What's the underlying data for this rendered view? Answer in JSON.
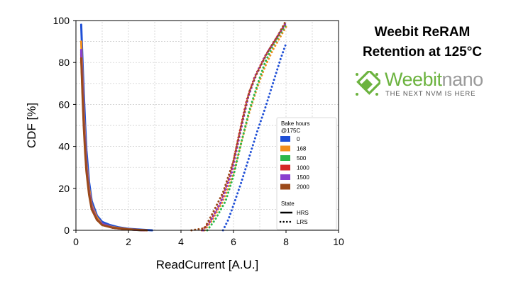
{
  "slide": {
    "title_line1": "Weebit ReRAM",
    "title_line2": "Retention at 125°C"
  },
  "logo": {
    "brand_part1": "Weebit",
    "brand_part2": "nano",
    "tagline": "THE NEXT NVM IS HERE",
    "brand_color": "#6cb33f",
    "nano_color": "#9a9a9a",
    "tagline_color": "#555555",
    "icon": "chip-icon"
  },
  "chart_data": {
    "type": "line",
    "xlabel": "ReadCurrent [A.U.]",
    "ylabel": "CDF [%]",
    "xlim": [
      0,
      10
    ],
    "ylim": [
      0,
      100
    ],
    "xticks": [
      0,
      2,
      4,
      6,
      8,
      10
    ],
    "yticks": [
      0,
      20,
      40,
      60,
      80,
      100
    ],
    "grid": true,
    "legend": {
      "position": "right",
      "title_line1": "Bake hours",
      "title_line2": "@175C",
      "state_title": "State",
      "state_entries": [
        {
          "label": "HRS",
          "style": "solid"
        },
        {
          "label": "LRS",
          "style": "dotted"
        }
      ]
    },
    "series": [
      {
        "name": "0",
        "color": "#1f4fd6",
        "hrs": [
          [
            0.2,
            98
          ],
          [
            0.25,
            80
          ],
          [
            0.3,
            65
          ],
          [
            0.35,
            50
          ],
          [
            0.4,
            38
          ],
          [
            0.5,
            23
          ],
          [
            0.6,
            14
          ],
          [
            0.8,
            7
          ],
          [
            1.0,
            4
          ],
          [
            1.3,
            2.5
          ],
          [
            1.6,
            1.5
          ],
          [
            2.0,
            0.7
          ],
          [
            2.5,
            0.3
          ],
          [
            2.9,
            0
          ]
        ],
        "lrs": [
          [
            5.6,
            0
          ],
          [
            5.8,
            5
          ],
          [
            6.0,
            12
          ],
          [
            6.3,
            23
          ],
          [
            6.6,
            35
          ],
          [
            6.9,
            47
          ],
          [
            7.2,
            58
          ],
          [
            7.5,
            70
          ],
          [
            7.8,
            82
          ],
          [
            8.0,
            89
          ]
        ]
      },
      {
        "name": "168",
        "color": "#f28e1c",
        "hrs": [
          [
            0.2,
            90
          ],
          [
            0.25,
            72
          ],
          [
            0.3,
            56
          ],
          [
            0.35,
            43
          ],
          [
            0.4,
            32
          ],
          [
            0.5,
            20
          ],
          [
            0.6,
            12
          ],
          [
            0.8,
            6
          ],
          [
            1.0,
            3
          ],
          [
            1.4,
            1.5
          ],
          [
            2.0,
            0.5
          ],
          [
            2.6,
            0
          ]
        ],
        "lrs": [
          [
            4.9,
            0
          ],
          [
            5.2,
            5
          ],
          [
            5.6,
            14
          ],
          [
            6.0,
            27
          ],
          [
            6.3,
            42
          ],
          [
            6.6,
            56
          ],
          [
            6.9,
            68
          ],
          [
            7.2,
            78
          ],
          [
            7.5,
            86
          ],
          [
            8.0,
            97
          ]
        ]
      },
      {
        "name": "500",
        "color": "#2cb84b",
        "hrs": [
          [
            0.2,
            85
          ],
          [
            0.25,
            67
          ],
          [
            0.3,
            52
          ],
          [
            0.35,
            40
          ],
          [
            0.4,
            30
          ],
          [
            0.5,
            18
          ],
          [
            0.6,
            11
          ],
          [
            0.8,
            5
          ],
          [
            1.0,
            3
          ],
          [
            1.4,
            1.3
          ],
          [
            2.0,
            0.4
          ],
          [
            2.5,
            0
          ]
        ],
        "lrs": [
          [
            5.0,
            0
          ],
          [
            5.3,
            5
          ],
          [
            5.7,
            14
          ],
          [
            6.0,
            26
          ],
          [
            6.3,
            42
          ],
          [
            6.6,
            57
          ],
          [
            6.9,
            69
          ],
          [
            7.2,
            80
          ],
          [
            7.5,
            88
          ],
          [
            8.0,
            98
          ]
        ]
      },
      {
        "name": "1000",
        "color": "#d62728",
        "hrs": [
          [
            0.2,
            84
          ],
          [
            0.25,
            66
          ],
          [
            0.3,
            51
          ],
          [
            0.35,
            39
          ],
          [
            0.4,
            29
          ],
          [
            0.5,
            18
          ],
          [
            0.6,
            11
          ],
          [
            0.8,
            5
          ],
          [
            1.0,
            3
          ],
          [
            1.4,
            1.2
          ],
          [
            2.0,
            0.4
          ],
          [
            2.6,
            0
          ]
        ],
        "lrs": [
          [
            4.8,
            0
          ],
          [
            5.1,
            4
          ],
          [
            5.5,
            13
          ],
          [
            5.9,
            27
          ],
          [
            6.2,
            45
          ],
          [
            6.5,
            62
          ],
          [
            6.8,
            73
          ],
          [
            7.2,
            83
          ],
          [
            7.6,
            91
          ],
          [
            8.0,
            99
          ]
        ]
      },
      {
        "name": "1500",
        "color": "#8a3fcf",
        "hrs": [
          [
            0.2,
            86
          ],
          [
            0.25,
            68
          ],
          [
            0.3,
            52
          ],
          [
            0.35,
            40
          ],
          [
            0.4,
            30
          ],
          [
            0.5,
            18
          ],
          [
            0.6,
            11
          ],
          [
            0.8,
            5
          ],
          [
            1.0,
            3
          ],
          [
            1.4,
            1.3
          ],
          [
            2.0,
            0.4
          ],
          [
            2.6,
            0
          ]
        ],
        "lrs": [
          [
            4.85,
            0
          ],
          [
            5.15,
            5
          ],
          [
            5.55,
            14
          ],
          [
            5.95,
            28
          ],
          [
            6.25,
            46
          ],
          [
            6.55,
            63
          ],
          [
            6.85,
            74
          ],
          [
            7.25,
            84
          ],
          [
            7.65,
            92
          ],
          [
            8.0,
            99
          ]
        ]
      },
      {
        "name": "2000",
        "color": "#9c4a1a",
        "hrs": [
          [
            0.2,
            82
          ],
          [
            0.25,
            64
          ],
          [
            0.3,
            49
          ],
          [
            0.35,
            37
          ],
          [
            0.4,
            28
          ],
          [
            0.5,
            17
          ],
          [
            0.6,
            10
          ],
          [
            0.8,
            5
          ],
          [
            1.0,
            2.5
          ],
          [
            1.4,
            1.2
          ],
          [
            2.0,
            0.4
          ],
          [
            2.7,
            0
          ]
        ],
        "lrs": [
          [
            4.4,
            0
          ],
          [
            4.9,
            1
          ],
          [
            5.2,
            8
          ],
          [
            5.6,
            18
          ],
          [
            6.0,
            33
          ],
          [
            6.3,
            50
          ],
          [
            6.6,
            66
          ],
          [
            6.9,
            75
          ],
          [
            7.3,
            85
          ],
          [
            7.7,
            93
          ],
          [
            8.0,
            100
          ]
        ]
      }
    ]
  }
}
